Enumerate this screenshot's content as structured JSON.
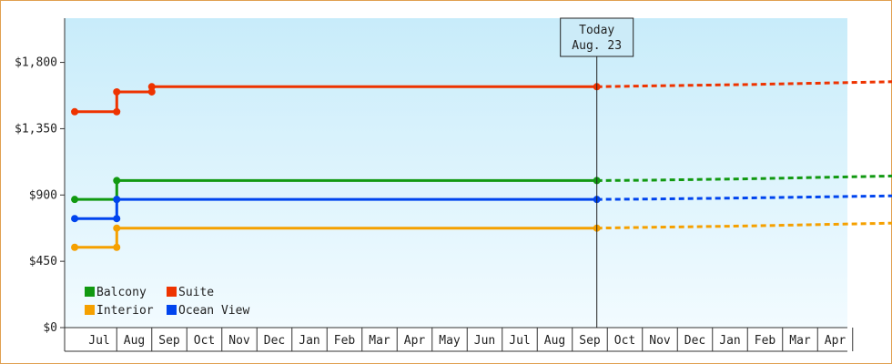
{
  "chart_data": {
    "type": "line",
    "title": "",
    "xlabel": "",
    "ylabel": "",
    "x_ticks": [
      "Jul",
      "Aug",
      "Sep",
      "Oct",
      "Nov",
      "Dec",
      "Jan",
      "Feb",
      "Mar",
      "Apr",
      "May",
      "Jun",
      "Jul",
      "Aug",
      "Sep",
      "Oct",
      "Nov",
      "Dec",
      "Jan",
      "Feb",
      "Mar",
      "Apr"
    ],
    "y_ticks": [
      "$0",
      "$450",
      "$900",
      "$1,350",
      "$1,800"
    ],
    "ylim": [
      0,
      2100
    ],
    "grid": false,
    "legend_position": "bottom-left",
    "today": {
      "line1": "Today",
      "line2": "Aug. 23",
      "x": 14.2
    },
    "series": [
      {
        "name": "Balcony",
        "color": "#119911",
        "actual": [
          [
            -0.7,
            870
          ],
          [
            0.5,
            870
          ],
          [
            0.5,
            998
          ],
          [
            14.2,
            998
          ]
        ],
        "markers": [
          [
            -0.7,
            870
          ],
          [
            0.5,
            870
          ],
          [
            0.5,
            998
          ],
          [
            14.2,
            998
          ]
        ],
        "projected": [
          [
            14.2,
            998
          ],
          [
            15.5,
            1000
          ],
          [
            18.5,
            1010
          ],
          [
            22.9,
            1030
          ]
        ]
      },
      {
        "name": "Suite",
        "color": "#ee3300",
        "actual": [
          [
            -0.7,
            1465
          ],
          [
            0.5,
            1465
          ],
          [
            0.5,
            1600
          ],
          [
            1.5,
            1600
          ],
          [
            1.5,
            1635
          ],
          [
            14.2,
            1635
          ]
        ],
        "markers": [
          [
            -0.7,
            1465
          ],
          [
            0.5,
            1465
          ],
          [
            0.5,
            1600
          ],
          [
            1.5,
            1600
          ],
          [
            1.5,
            1635
          ],
          [
            14.2,
            1635
          ]
        ],
        "projected": [
          [
            14.2,
            1635
          ],
          [
            15.5,
            1640
          ],
          [
            18.5,
            1650
          ],
          [
            22.9,
            1670
          ]
        ]
      },
      {
        "name": "Interior",
        "color": "#f5a000",
        "actual": [
          [
            -0.7,
            545
          ],
          [
            0.5,
            545
          ],
          [
            0.5,
            675
          ],
          [
            14.2,
            675
          ]
        ],
        "markers": [
          [
            -0.7,
            545
          ],
          [
            0.5,
            545
          ],
          [
            0.5,
            675
          ],
          [
            14.2,
            675
          ]
        ],
        "projected": [
          [
            14.2,
            675
          ],
          [
            15.5,
            680
          ],
          [
            18.5,
            690
          ],
          [
            22.9,
            710
          ]
        ]
      },
      {
        "name": "Ocean View",
        "color": "#0044ee",
        "actual": [
          [
            -0.7,
            740
          ],
          [
            0.5,
            740
          ],
          [
            0.5,
            870
          ],
          [
            14.2,
            870
          ]
        ],
        "markers": [
          [
            -0.7,
            740
          ],
          [
            0.5,
            740
          ],
          [
            0.5,
            870
          ],
          [
            14.2,
            870
          ]
        ],
        "projected": [
          [
            14.2,
            870
          ],
          [
            15.5,
            872
          ],
          [
            18.5,
            880
          ],
          [
            22.9,
            895
          ]
        ]
      }
    ],
    "legend_order": [
      "Balcony",
      "Suite",
      "Interior",
      "Ocean View"
    ]
  }
}
